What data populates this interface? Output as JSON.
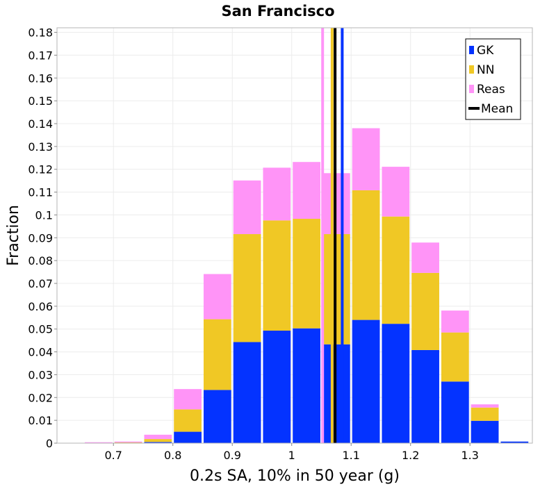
{
  "chart_data": {
    "type": "bar",
    "stacked": true,
    "title": "San Francisco",
    "xlabel": "0.2s SA, 10% in 50 year (g)",
    "ylabel": "Fraction",
    "xlim": [
      0.605,
      1.405
    ],
    "ylim": [
      0,
      0.182
    ],
    "grid": true,
    "legend_position": "top-right",
    "bin_width": 0.05,
    "x": [
      0.625,
      0.675,
      0.725,
      0.775,
      0.825,
      0.875,
      0.925,
      0.975,
      1.025,
      1.075,
      1.125,
      1.175,
      1.225,
      1.275,
      1.325,
      1.375
    ],
    "series": [
      {
        "name": "GK",
        "color": "#0433ff",
        "values": [
          0,
          0,
          0,
          0.0005,
          0.005,
          0.0233,
          0.0443,
          0.0493,
          0.0503,
          0.0433,
          0.054,
          0.0523,
          0.0408,
          0.027,
          0.0098,
          0.0007
        ]
      },
      {
        "name": "NN",
        "color": "#f0c825",
        "values": [
          0,
          0.0001,
          0.0003,
          0.0013,
          0.0098,
          0.031,
          0.0473,
          0.0483,
          0.048,
          0.0483,
          0.0568,
          0.047,
          0.0338,
          0.0215,
          0.0058,
          0
        ]
      },
      {
        "name": "Reas",
        "color": "#ff94f7",
        "values": [
          0,
          0.0003,
          0.0004,
          0.0019,
          0.0089,
          0.0198,
          0.0235,
          0.0231,
          0.0249,
          0.0267,
          0.0272,
          0.0218,
          0.0133,
          0.0096,
          0.0014,
          0
        ]
      }
    ],
    "mean_lines": [
      {
        "series": "GK",
        "x": 1.085,
        "color": "#0433ff"
      },
      {
        "series": "NN",
        "x": 1.068,
        "color": "#f0c825"
      },
      {
        "series": "Reas",
        "x": 1.052,
        "color": "#ff94f7"
      },
      {
        "series": "Mean",
        "x": 1.073,
        "color": "#000000"
      }
    ],
    "x_ticks": [
      0.7,
      0.8,
      0.9,
      1.0,
      1.1,
      1.2,
      1.3
    ],
    "x_tick_labels": [
      "0.7",
      "0.8",
      "0.9",
      "1",
      "1.1",
      "1.2",
      "1.3"
    ],
    "y_ticks": [
      0,
      0.01,
      0.02,
      0.03,
      0.04,
      0.05,
      0.06,
      0.07,
      0.08,
      0.09,
      0.1,
      0.11,
      0.12,
      0.13,
      0.14,
      0.15,
      0.16,
      0.17,
      0.18
    ],
    "y_tick_labels": [
      "0",
      "0.01",
      "0.02",
      "0.03",
      "0.04",
      "0.05",
      "0.06",
      "0.07",
      "0.08",
      "0.09",
      "0.1",
      "0.11",
      "0.12",
      "0.13",
      "0.14",
      "0.15",
      "0.16",
      "0.17",
      "0.18"
    ],
    "legend": [
      {
        "label": "GK",
        "color": "#0433ff",
        "marker": "square"
      },
      {
        "label": "NN",
        "color": "#f0c825",
        "marker": "square"
      },
      {
        "label": "Reas",
        "color": "#ff94f7",
        "marker": "square"
      },
      {
        "label": "Mean",
        "color": "#000000",
        "marker": "line"
      }
    ]
  }
}
